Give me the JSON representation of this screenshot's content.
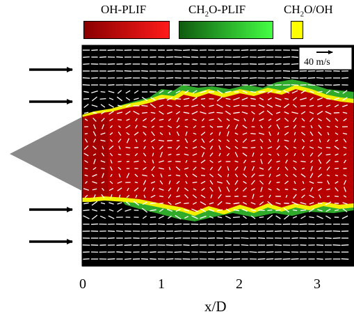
{
  "legend": [
    {
      "label": "OH-PLIF",
      "color_start": "#8a0000",
      "color_end": "#ff1a1a"
    },
    {
      "label_prefix": "CH",
      "label_sub": "2",
      "label_suffix": "O-PLIF",
      "color_start": "#0f5a0f",
      "color_end": "#44ff44"
    },
    {
      "label_prefix": "CH",
      "label_sub": "2",
      "label_suffix": "O/OH",
      "color": "#ffff00"
    }
  ],
  "velocity_scale": {
    "label": "40 m/s"
  },
  "x_axis": {
    "title": "x/D",
    "ticks": [
      "0",
      "1",
      "2",
      "3"
    ]
  },
  "colors": {
    "background_field": "#000000",
    "oh_region": "#b80000",
    "ch2o_region": "#2faa2a",
    "overlap": "#f2f000",
    "bluff_body": "#8a8a8a",
    "vectors": "#ffffff",
    "inflow_arrows": "#000000"
  },
  "inflow_arrows": {
    "count": 4,
    "icon": "right-arrow-icon"
  },
  "bluff_body": {
    "icon": "triangle-bluff-body"
  }
}
